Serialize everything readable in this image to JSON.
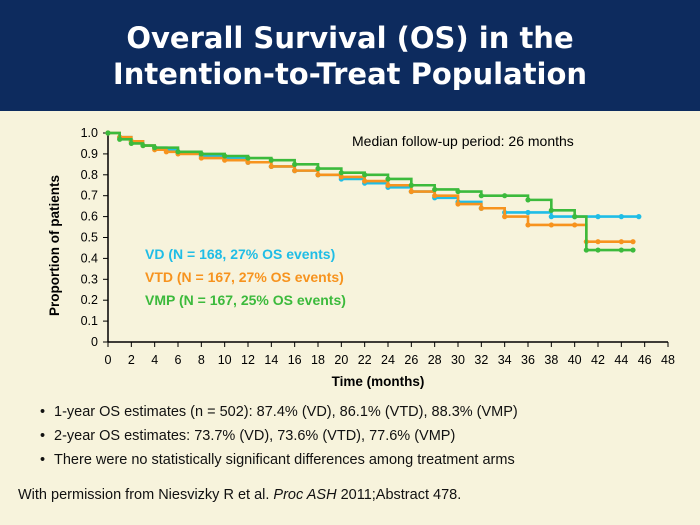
{
  "slide": {
    "title_line1": "Overall Survival (OS) in the",
    "title_line2": "Intention-to-Treat Population",
    "title_bar_color": "#0d2b5e",
    "background_color": "#f7f3dc"
  },
  "bullets": [
    "1-year OS estimates (n = 502): 87.4% (VD), 86.1% (VTD), 88.3% (VMP)",
    "2-year OS estimates: 73.7% (VD), 73.6% (VTD), 77.6% (VMP)",
    "There were no statistically significant differences among treatment arms"
  ],
  "bullet_marker": "•",
  "footer": {
    "prefix": "With permission from Niesvizky R et al. ",
    "journal": "Proc ASH",
    "suffix": " 2011;Abstract 478."
  },
  "chart_data": {
    "type": "line",
    "subtype": "kaplan-meier step curve",
    "xlabel": "Time (months)",
    "ylabel": "Proportion of patients",
    "xlim": [
      0,
      48
    ],
    "ylim": [
      0,
      1.0
    ],
    "xticks": [
      0,
      2,
      4,
      6,
      8,
      10,
      12,
      14,
      16,
      18,
      20,
      22,
      24,
      26,
      28,
      30,
      32,
      34,
      36,
      38,
      40,
      42,
      44,
      46,
      48
    ],
    "yticks": [
      0,
      0.1,
      0.2,
      0.3,
      0.4,
      0.5,
      0.6,
      0.7,
      0.8,
      0.9,
      1.0
    ],
    "ytick_labels": [
      "0",
      "0.1",
      "0.2",
      "0.3",
      "0.4",
      "0.5",
      "0.6",
      "0.7",
      "0.8",
      "0.9",
      "1.0"
    ],
    "annotation": "Median follow-up period: 26 months",
    "grid": false,
    "legend_placement": "center-left",
    "series": [
      {
        "name": "VD (N = 168, 27% OS events)",
        "color": "#1fbde6",
        "x": [
          0,
          1,
          2,
          3,
          4,
          5,
          6,
          8,
          10,
          12,
          14,
          16,
          18,
          20,
          22,
          24,
          26,
          28,
          30,
          32,
          34,
          36,
          38,
          40,
          42,
          44,
          45.5
        ],
        "y": [
          1.0,
          0.98,
          0.96,
          0.94,
          0.93,
          0.92,
          0.91,
          0.89,
          0.88,
          0.86,
          0.84,
          0.82,
          0.8,
          0.78,
          0.76,
          0.74,
          0.72,
          0.69,
          0.67,
          0.64,
          0.62,
          0.62,
          0.6,
          0.6,
          0.6,
          0.6,
          0.6
        ]
      },
      {
        "name": "VTD (N = 167, 27% OS events)",
        "color": "#f7931e",
        "x": [
          0,
          1,
          2,
          3,
          4,
          5,
          6,
          8,
          10,
          12,
          14,
          16,
          18,
          20,
          22,
          24,
          26,
          28,
          30,
          32,
          34,
          36,
          38,
          40,
          41,
          42,
          44,
          45
        ],
        "y": [
          1.0,
          0.98,
          0.96,
          0.94,
          0.92,
          0.91,
          0.9,
          0.88,
          0.87,
          0.86,
          0.84,
          0.82,
          0.8,
          0.79,
          0.77,
          0.75,
          0.72,
          0.7,
          0.66,
          0.64,
          0.6,
          0.56,
          0.56,
          0.56,
          0.48,
          0.48,
          0.48,
          0.48
        ]
      },
      {
        "name": "VMP (N = 167, 25% OS events)",
        "color": "#3cba3c",
        "x": [
          0,
          1,
          2,
          3,
          4,
          6,
          8,
          10,
          12,
          14,
          16,
          18,
          20,
          22,
          24,
          26,
          28,
          30,
          32,
          34,
          36,
          38,
          40,
          41,
          42,
          44,
          45
        ],
        "y": [
          1.0,
          0.97,
          0.95,
          0.94,
          0.93,
          0.91,
          0.9,
          0.89,
          0.88,
          0.87,
          0.85,
          0.83,
          0.81,
          0.8,
          0.78,
          0.75,
          0.73,
          0.72,
          0.7,
          0.7,
          0.68,
          0.63,
          0.6,
          0.44,
          0.44,
          0.44,
          0.44
        ]
      }
    ]
  }
}
